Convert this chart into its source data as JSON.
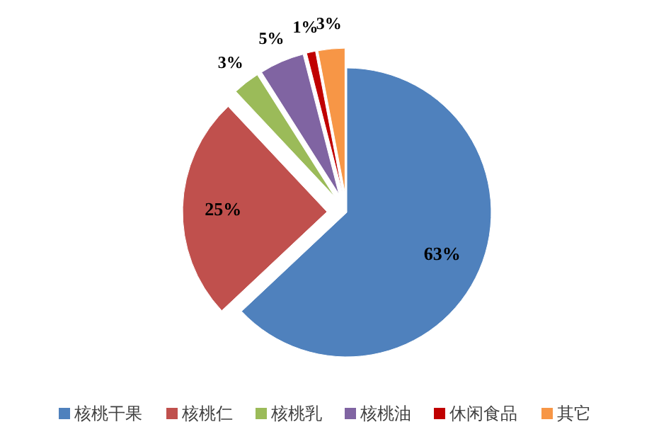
{
  "chart_data": {
    "type": "pie",
    "categories": [
      "核桃干果",
      "核桃仁",
      "核桃乳",
      "核桃油",
      "休闲食品",
      "其它"
    ],
    "values": [
      63,
      25,
      3,
      5,
      1,
      3
    ],
    "colors": [
      "#4f81bd",
      "#c0504d",
      "#9bbb59",
      "#8064a2",
      "#c00000",
      "#f79646"
    ],
    "value_labels": [
      "63%",
      "25%",
      "3%",
      "5%",
      "1%",
      "3%"
    ],
    "legend": "bottom"
  }
}
